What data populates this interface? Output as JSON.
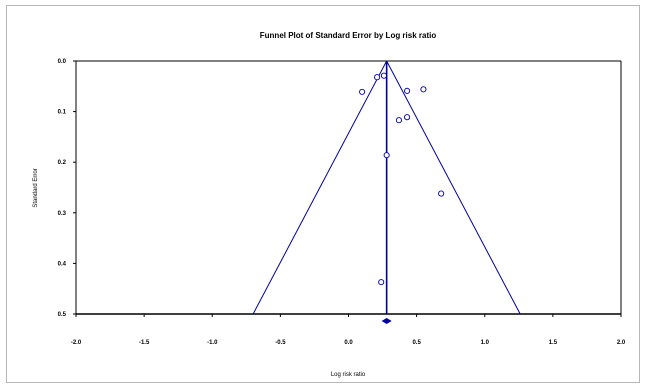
{
  "chart_data": {
    "type": "scatter",
    "title": "Funnel Plot of Standard Error by Log risk ratio",
    "xlabel": "Log risk ratio",
    "ylabel": "Standard Error",
    "xlim": [
      -2.0,
      2.0
    ],
    "ylim": [
      0.0,
      0.5
    ],
    "y_reversed": true,
    "x_ticks": [
      "-2.0",
      "-1.5",
      "-1.0",
      "-0.5",
      "0.0",
      "0.5",
      "1.0",
      "1.5",
      "2.0"
    ],
    "y_ticks": [
      "0.0",
      "0.1",
      "0.2",
      "0.3",
      "0.4",
      "0.5"
    ],
    "grid": false,
    "points": [
      {
        "x": 0.1,
        "y": 0.061
      },
      {
        "x": 0.21,
        "y": 0.032
      },
      {
        "x": 0.26,
        "y": 0.029
      },
      {
        "x": 0.43,
        "y": 0.059
      },
      {
        "x": 0.55,
        "y": 0.056
      },
      {
        "x": 0.43,
        "y": 0.111
      },
      {
        "x": 0.37,
        "y": 0.117
      },
      {
        "x": 0.28,
        "y": 0.186
      },
      {
        "x": 0.68,
        "y": 0.262
      },
      {
        "x": 0.24,
        "y": 0.437
      }
    ],
    "pooled_estimate": 0.28,
    "funnel_multiplier": 1.96,
    "colors": {
      "line": "#0000a0",
      "marker": "#0000a0",
      "text": "#000000"
    }
  }
}
